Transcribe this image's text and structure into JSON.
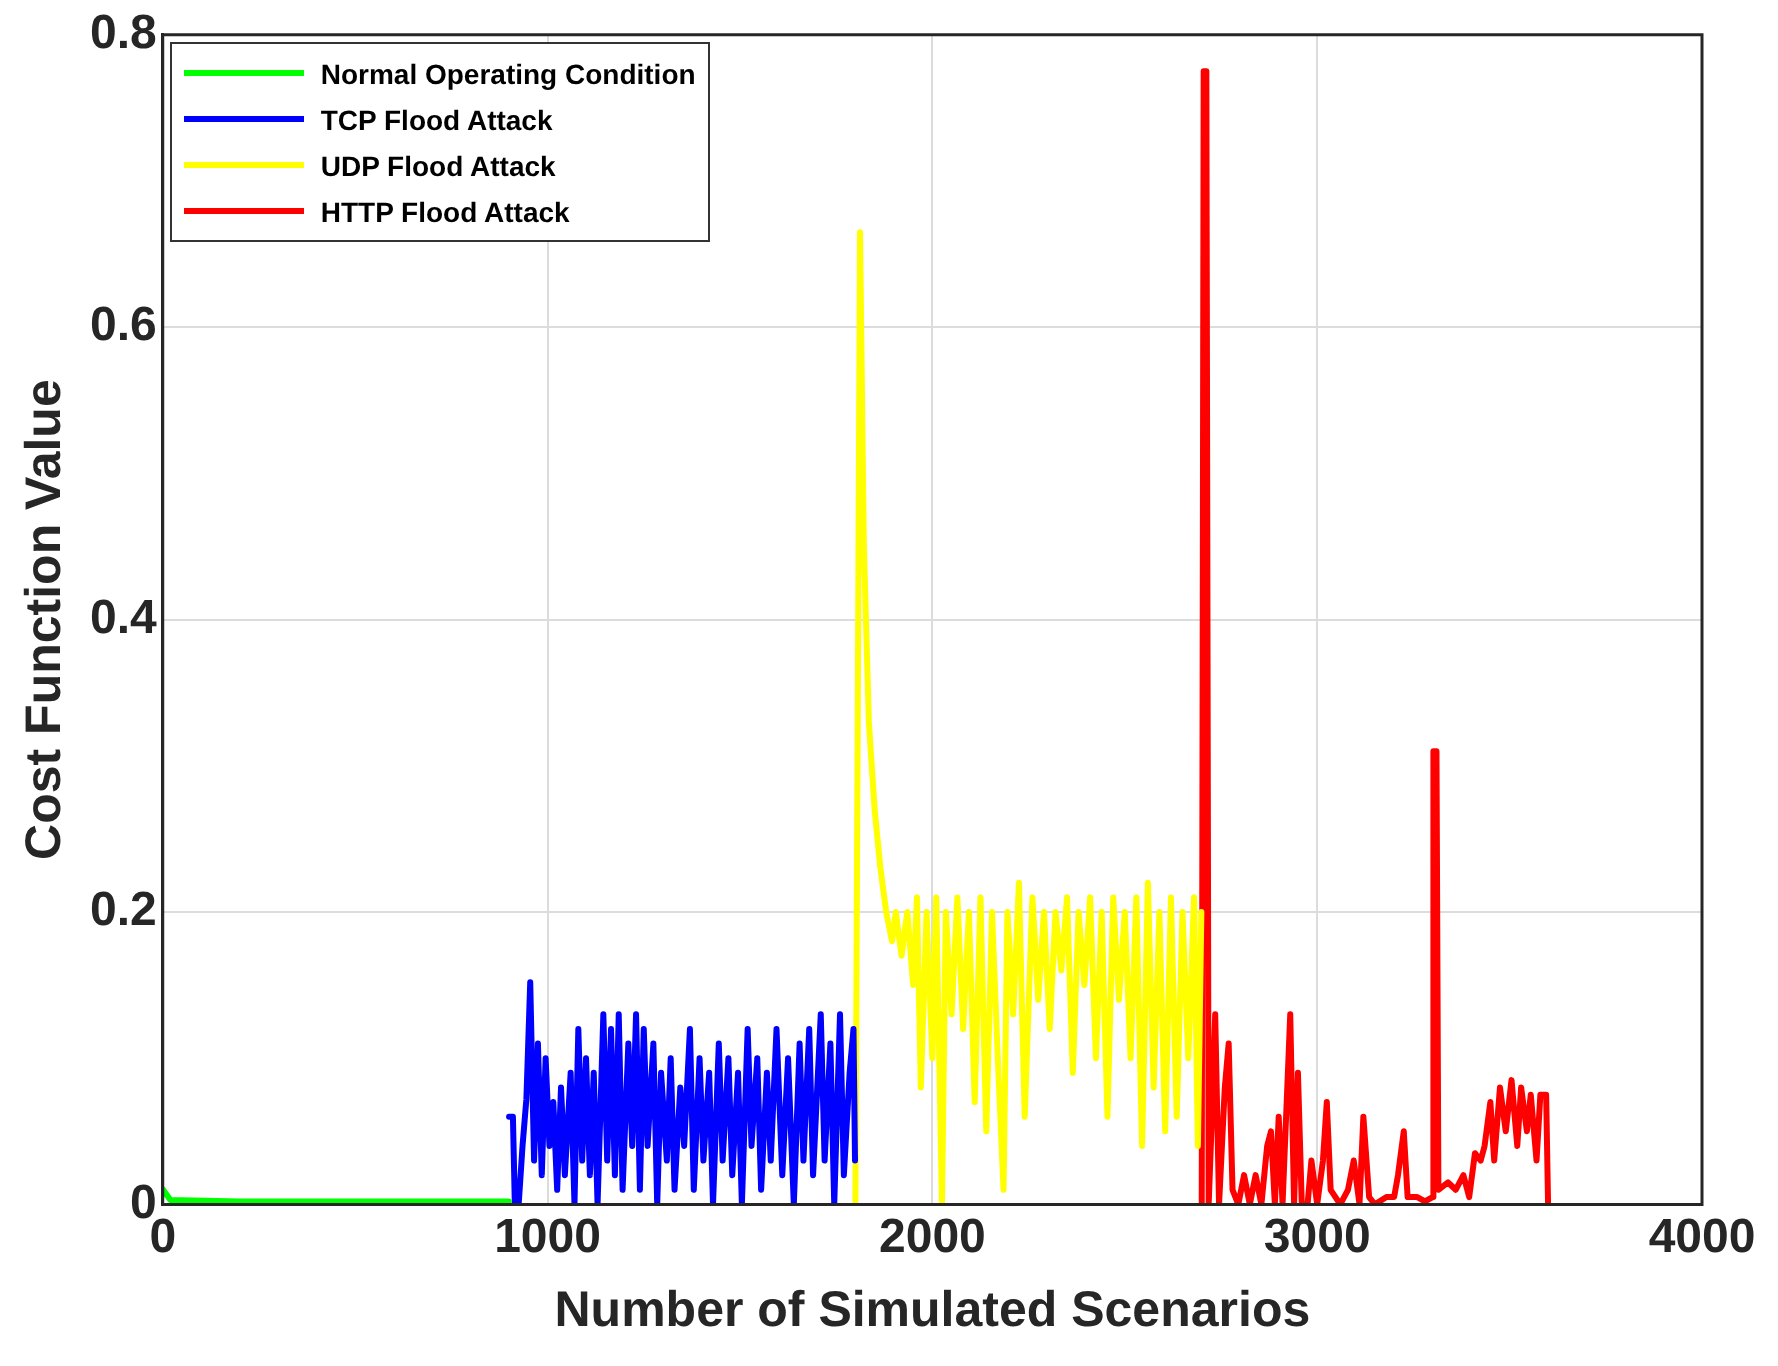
{
  "chart_data": {
    "type": "line",
    "xlabel": "Number of Simulated Scenarios",
    "ylabel": "Cost Function Value",
    "xlim": [
      0,
      4000
    ],
    "xticks": [
      0,
      1000,
      2000,
      3000,
      4000
    ],
    "ylim": [
      0,
      0.8
    ],
    "yticks": [
      0,
      0.2,
      0.4,
      0.6,
      0.8
    ],
    "grid": true,
    "legend": "top left",
    "marker": "none",
    "line_style": "solid",
    "series": [
      {
        "name": "Normal Operating Condition",
        "color": "#00ff00",
        "x": [
          1,
          20,
          200,
          500,
          899
        ],
        "values": [
          0.01,
          0.003,
          0.002,
          0.002,
          0.002
        ]
      },
      {
        "name": "TCP Flood Attack",
        "color": "#0000ff",
        "x": [
          900,
          910,
          915,
          925,
          935,
          945,
          955,
          965,
          975,
          985,
          995,
          1005,
          1015,
          1025,
          1035,
          1045,
          1060,
          1070,
          1080,
          1090,
          1100,
          1110,
          1120,
          1130,
          1145,
          1155,
          1165,
          1175,
          1185,
          1195,
          1210,
          1220,
          1230,
          1240,
          1250,
          1260,
          1275,
          1285,
          1295,
          1310,
          1320,
          1330,
          1345,
          1355,
          1370,
          1380,
          1395,
          1405,
          1420,
          1430,
          1445,
          1455,
          1470,
          1480,
          1495,
          1505,
          1520,
          1530,
          1545,
          1555,
          1570,
          1580,
          1595,
          1610,
          1625,
          1640,
          1655,
          1665,
          1680,
          1690,
          1710,
          1720,
          1735,
          1745,
          1760,
          1770,
          1785,
          1795,
          1799
        ],
        "values": [
          0.06,
          0.06,
          0.0,
          0.0,
          0.04,
          0.072,
          0.152,
          0.03,
          0.11,
          0.02,
          0.1,
          0.04,
          0.07,
          0.01,
          0.08,
          0.02,
          0.09,
          0.0,
          0.12,
          0.03,
          0.1,
          0.02,
          0.09,
          0.0,
          0.13,
          0.03,
          0.12,
          0.02,
          0.13,
          0.01,
          0.11,
          0.04,
          0.13,
          0.01,
          0.12,
          0.04,
          0.11,
          0.0,
          0.09,
          0.03,
          0.1,
          0.01,
          0.08,
          0.04,
          0.12,
          0.01,
          0.1,
          0.03,
          0.09,
          0.0,
          0.11,
          0.03,
          0.1,
          0.02,
          0.09,
          0.0,
          0.12,
          0.04,
          0.1,
          0.01,
          0.09,
          0.03,
          0.12,
          0.02,
          0.1,
          0.0,
          0.11,
          0.03,
          0.12,
          0.02,
          0.13,
          0.03,
          0.11,
          0.0,
          0.13,
          0.02,
          0.09,
          0.12,
          0.03
        ]
      },
      {
        "name": "UDP Flood Attack",
        "color": "#ffff00",
        "x": [
          1800,
          1812,
          1822,
          1835,
          1850,
          1865,
          1880,
          1895,
          1905,
          1920,
          1935,
          1950,
          1960,
          1970,
          1985,
          2000,
          2010,
          2025,
          2035,
          2050,
          2065,
          2080,
          2095,
          2110,
          2125,
          2140,
          2155,
          2170,
          2185,
          2195,
          2210,
          2225,
          2240,
          2260,
          2275,
          2290,
          2305,
          2320,
          2335,
          2350,
          2365,
          2380,
          2395,
          2410,
          2425,
          2440,
          2455,
          2470,
          2485,
          2500,
          2515,
          2530,
          2545,
          2560,
          2575,
          2590,
          2605,
          2620,
          2635,
          2650,
          2665,
          2680,
          2690,
          2699
        ],
        "values": [
          0.0,
          0.665,
          0.45,
          0.33,
          0.27,
          0.23,
          0.2,
          0.18,
          0.2,
          0.17,
          0.2,
          0.15,
          0.21,
          0.08,
          0.2,
          0.1,
          0.21,
          0.0,
          0.2,
          0.13,
          0.21,
          0.12,
          0.2,
          0.07,
          0.21,
          0.05,
          0.2,
          0.1,
          0.01,
          0.2,
          0.13,
          0.22,
          0.06,
          0.21,
          0.14,
          0.2,
          0.12,
          0.2,
          0.16,
          0.21,
          0.09,
          0.2,
          0.15,
          0.21,
          0.1,
          0.2,
          0.06,
          0.21,
          0.14,
          0.2,
          0.1,
          0.21,
          0.04,
          0.22,
          0.08,
          0.2,
          0.05,
          0.21,
          0.06,
          0.2,
          0.1,
          0.21,
          0.04,
          0.2
        ]
      },
      {
        "name": "HTTP Flood Attack",
        "color": "#ff0000",
        "x": [
          2700,
          2705,
          2712,
          2718,
          2725,
          2735,
          2745,
          2760,
          2770,
          2780,
          2795,
          2810,
          2825,
          2840,
          2855,
          2870,
          2880,
          2890,
          2900,
          2910,
          2930,
          2940,
          2950,
          2960,
          2975,
          2985,
          3000,
          3015,
          3025,
          3035,
          3060,
          3080,
          3095,
          3110,
          3120,
          3135,
          3150,
          3180,
          3200,
          3210,
          3225,
          3235,
          3260,
          3280,
          3300,
          3302,
          3310,
          3315,
          3340,
          3360,
          3380,
          3395,
          3410,
          3425,
          3435,
          3450,
          3460,
          3475,
          3490,
          3505,
          3520,
          3530,
          3545,
          3555,
          3570,
          3580,
          3595,
          3600
        ],
        "values": [
          0.0,
          0.775,
          0.775,
          0.0,
          0.05,
          0.13,
          0.0,
          0.08,
          0.11,
          0.01,
          0.0,
          0.02,
          0.0,
          0.02,
          0.0,
          0.04,
          0.05,
          0.0,
          0.06,
          0.0,
          0.13,
          0.0,
          0.09,
          0.0,
          0.0,
          0.03,
          0.0,
          0.03,
          0.07,
          0.01,
          0.0,
          0.01,
          0.03,
          0.0,
          0.06,
          0.005,
          0.0,
          0.005,
          0.005,
          0.02,
          0.05,
          0.005,
          0.005,
          0.002,
          0.005,
          0.31,
          0.31,
          0.01,
          0.015,
          0.01,
          0.02,
          0.005,
          0.035,
          0.03,
          0.04,
          0.07,
          0.03,
          0.08,
          0.05,
          0.085,
          0.04,
          0.08,
          0.05,
          0.075,
          0.03,
          0.075,
          0.075,
          0.0
        ]
      }
    ]
  }
}
